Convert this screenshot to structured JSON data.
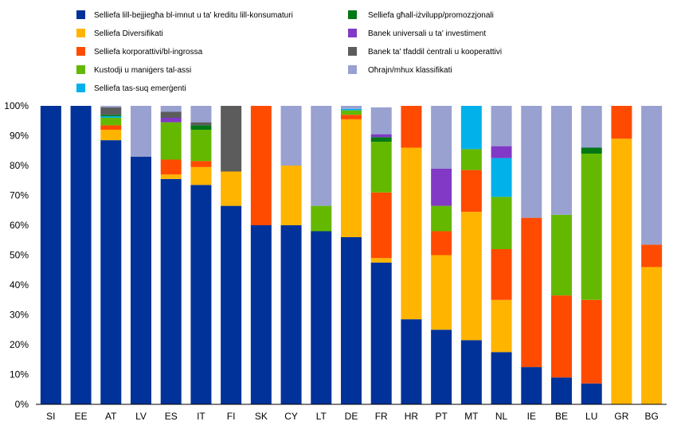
{
  "chart_data": {
    "type": "bar",
    "stacked": true,
    "normalized": true,
    "categories": [
      "SI",
      "EE",
      "AT",
      "LV",
      "ES",
      "IT",
      "FI",
      "SK",
      "CY",
      "LT",
      "DE",
      "FR",
      "HR",
      "PT",
      "MT",
      "NL",
      "IE",
      "BE",
      "LU",
      "GR",
      "BG"
    ],
    "series": [
      {
        "name": "Selliefa lill-bejjiegħa bl-imnut u ta' kreditu lill-konsumaturi",
        "color": "#003299",
        "values": [
          100,
          100,
          88.5,
          83,
          75.5,
          73.5,
          66.5,
          60,
          60,
          58,
          56,
          47.5,
          28.5,
          25,
          21.5,
          17.5,
          12.5,
          9,
          7,
          0,
          0
        ]
      },
      {
        "name": "Selliefa Diversifikati",
        "color": "#FFB400",
        "values": [
          0,
          0,
          3.5,
          0,
          1.5,
          6,
          11.5,
          0,
          20,
          0,
          39.5,
          1.5,
          57.5,
          25,
          43,
          17.5,
          0,
          0,
          0,
          89,
          46
        ]
      },
      {
        "name": "Selliefa korporattivi/bl-ingrossa",
        "color": "#FF4B00",
        "values": [
          0,
          0,
          1.5,
          0,
          5,
          2,
          0,
          40,
          0,
          0,
          1.5,
          22,
          14,
          8,
          14,
          17,
          50,
          27.5,
          28,
          11,
          7.5
        ]
      },
      {
        "name": "Kustodji u maniġers tal-assi",
        "color": "#65B800",
        "values": [
          0,
          0,
          2.5,
          0,
          12.5,
          10.5,
          0,
          0,
          0,
          8.5,
          1.5,
          17,
          0,
          8.5,
          7,
          17.5,
          0,
          27,
          49,
          0,
          0
        ]
      },
      {
        "name": "Selliefa tas-suq emerġenti",
        "color": "#00B1EA",
        "values": [
          0,
          0,
          0.5,
          0,
          0,
          0,
          0,
          0,
          0,
          0,
          0.5,
          0,
          0,
          0,
          14.5,
          13,
          0,
          0,
          0,
          0,
          0
        ]
      },
      {
        "name": "Selliefa għall-iżvilupp/promozzjonali",
        "color": "#007816",
        "values": [
          0,
          0,
          0.5,
          0,
          0,
          1.5,
          0,
          0,
          0,
          0,
          0,
          1.5,
          0,
          0,
          0,
          0,
          0,
          0,
          2,
          0,
          0
        ]
      },
      {
        "name": "Banek universali u ta' investiment",
        "color": "#8139C6",
        "values": [
          0,
          0,
          0,
          0,
          1.5,
          0,
          0,
          0,
          0,
          0,
          0,
          1,
          0,
          12.5,
          0,
          4,
          0,
          0,
          0,
          0,
          0
        ]
      },
      {
        "name": "Banek ta' tfaddil ċentrali u kooperattivi",
        "color": "#5C5C5C",
        "values": [
          0,
          0,
          2.5,
          0,
          2,
          1,
          22,
          0,
          0,
          0,
          0,
          0,
          0,
          0,
          0,
          0,
          0,
          0,
          0,
          0,
          0
        ]
      },
      {
        "name": "Oħrajn/mhux klassifikati",
        "color": "#98A1D0",
        "values": [
          0,
          0,
          0.5,
          17,
          2,
          5.5,
          0,
          0,
          20,
          33.5,
          1,
          9,
          0,
          21,
          0,
          13.5,
          37.5,
          36.5,
          14,
          0,
          46.5
        ]
      }
    ],
    "ylim": [
      0,
      100
    ],
    "y_ticks": [
      "0%",
      "10%",
      "20%",
      "30%",
      "40%",
      "50%",
      "60%",
      "70%",
      "80%",
      "90%",
      "100%"
    ],
    "grid": false,
    "legend_position": "top"
  }
}
